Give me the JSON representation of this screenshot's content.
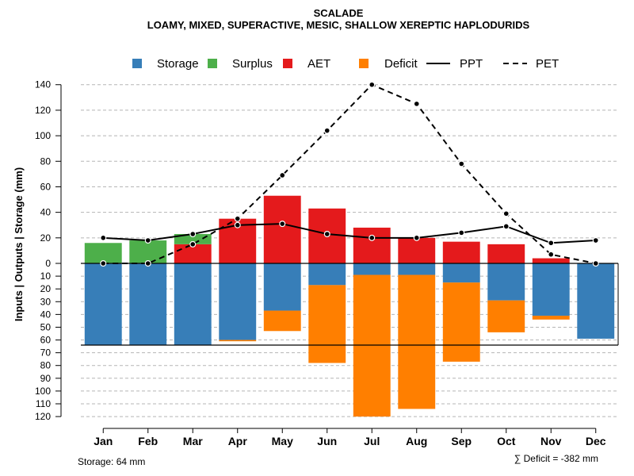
{
  "chart_data": {
    "type": "bar",
    "title": "SCALADE",
    "subtitle": "LOAMY, MIXED, SUPERACTIVE, MESIC, SHALLOW XEREPTIC HAPLODURIDS",
    "ylabel": "Inputs | Outputs | Storage    (mm)",
    "categories": [
      "Jan",
      "Feb",
      "Mar",
      "Apr",
      "May",
      "Jun",
      "Jul",
      "Aug",
      "Sep",
      "Oct",
      "Nov",
      "Dec"
    ],
    "upper_ticks": [
      "140",
      "120",
      "100",
      "80",
      "60",
      "40",
      "20",
      "0"
    ],
    "lower_ticks": [
      "10",
      "20",
      "30",
      "40",
      "50",
      "60",
      "70",
      "80",
      "90",
      "100",
      "110",
      "120"
    ],
    "ylim_upper": [
      0,
      140
    ],
    "ylim_lower": [
      0,
      120
    ],
    "storage_capacity": 64,
    "legend": [
      {
        "key": "storage",
        "label": "Storage",
        "type": "box",
        "color": "#377EB8"
      },
      {
        "key": "surplus",
        "label": "Surplus",
        "type": "box",
        "color": "#4DAF4A"
      },
      {
        "key": "aet",
        "label": "AET",
        "type": "box",
        "color": "#E41A1C"
      },
      {
        "key": "deficit",
        "label": "Deficit",
        "type": "box",
        "color": "#FF7F00"
      },
      {
        "key": "ppt",
        "label": "PPT",
        "type": "solid",
        "color": "#000000"
      },
      {
        "key": "pet",
        "label": "PET",
        "type": "dashed",
        "color": "#000000"
      }
    ],
    "series": [
      {
        "name": "AET",
        "values": [
          0,
          0,
          15,
          35,
          53,
          43,
          28,
          20,
          17,
          15,
          4,
          0
        ]
      },
      {
        "name": "Surplus",
        "values": [
          16,
          18,
          8,
          0,
          0,
          0,
          0,
          0,
          0,
          0,
          0,
          0
        ]
      },
      {
        "name": "Storage",
        "values": [
          64,
          64,
          64,
          60,
          37,
          17,
          9,
          9,
          15,
          29,
          41,
          59
        ]
      },
      {
        "name": "Deficit",
        "values": [
          0,
          0,
          0,
          1,
          16,
          61,
          111,
          105,
          62,
          25,
          3,
          0
        ]
      },
      {
        "name": "PPT",
        "values": [
          20,
          18,
          23,
          30,
          31,
          23,
          20,
          20,
          24,
          29,
          16,
          18
        ]
      },
      {
        "name": "PET",
        "values": [
          0,
          0,
          15,
          35,
          69,
          104,
          140,
          125,
          78,
          39,
          7,
          0
        ]
      }
    ],
    "footer_left": "Storage: 64 mm",
    "footer_right": "∑ Deficit = -382 mm"
  }
}
